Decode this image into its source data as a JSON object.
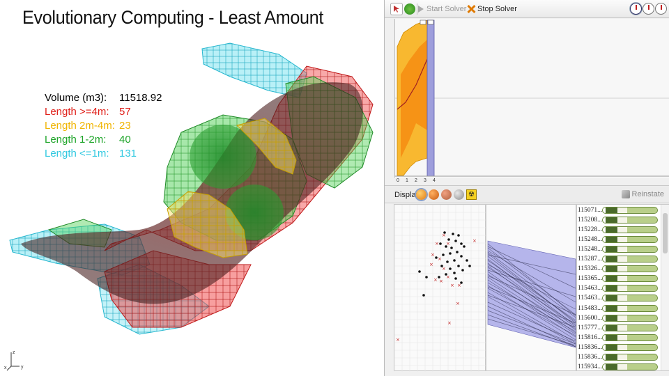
{
  "viewport": {
    "title": "Evolutionary Computing - Least Amount",
    "stats": [
      {
        "label": "Volume   (m3):",
        "value": "11518.92",
        "color": "#111111"
      },
      {
        "label": "Length  >=4m:",
        "value": "57",
        "color": "#e0201a"
      },
      {
        "label": "Length 2m-4m:",
        "value": "23",
        "color": "#f0b400"
      },
      {
        "label": "Length    1-2m:",
        "value": "40",
        "color": "#1fa52a"
      },
      {
        "label": "Length   <=1m:",
        "value": "131",
        "color": "#30c8e0"
      }
    ],
    "axes": {
      "z": "z",
      "x": "x",
      "y": "y"
    }
  },
  "solver": {
    "toolbar": {
      "start_label": "Start Solver",
      "stop_label": "Stop Solver",
      "start_enabled": false
    },
    "fitness_ticks": [
      "0",
      "1",
      "2",
      "3",
      "4"
    ],
    "display_label": "Display",
    "reinstate_label": "Reinstate",
    "display_colors": [
      "#f0a030",
      "#e07a20",
      "#c47040",
      "#a8a8a8"
    ],
    "genome_ids": [
      "115071...",
      "115208...",
      "115228...",
      "115248...",
      "115248...",
      "115287...",
      "115326...",
      "115365...",
      "115463...",
      "115463...",
      "115483...",
      "115600...",
      "115777...",
      "115816...",
      "115836...",
      "115836...",
      "115934..."
    ]
  }
}
